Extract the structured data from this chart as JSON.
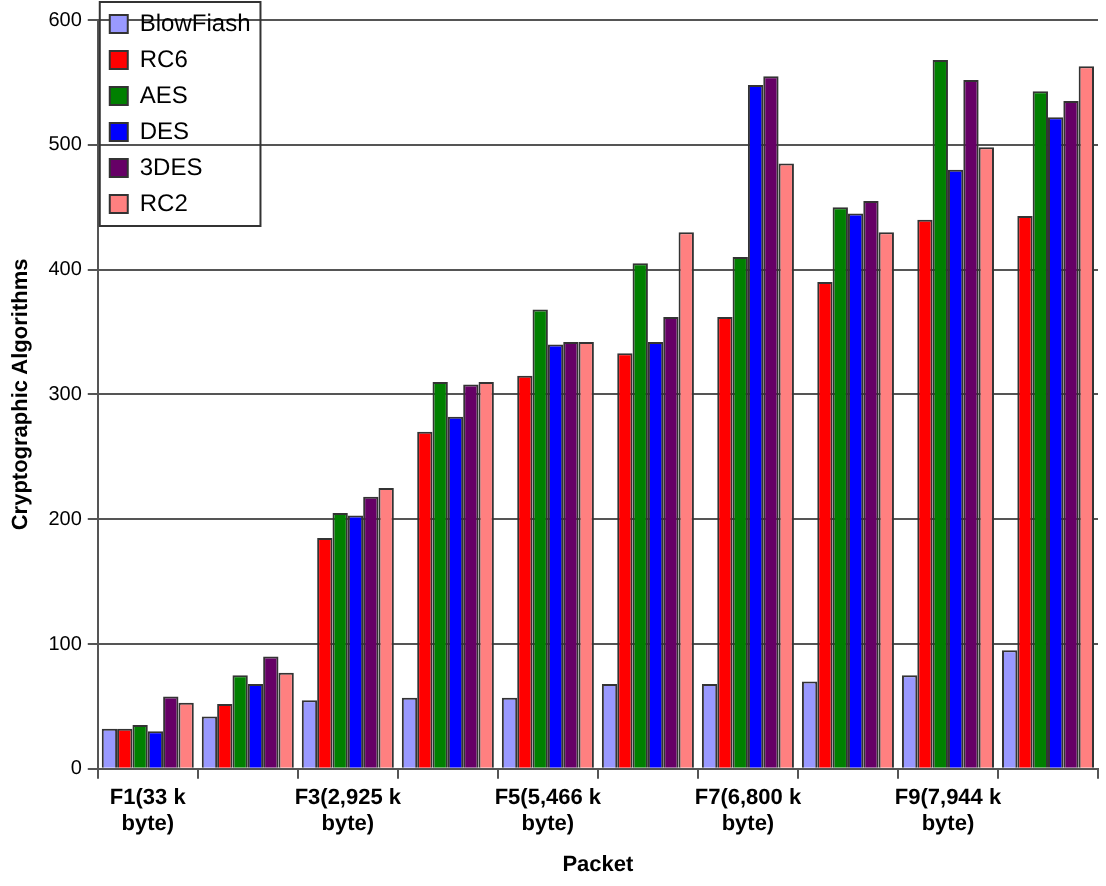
{
  "chart_data": {
    "type": "bar",
    "xlabel": "Packet",
    "ylabel": "Cryptographic Algorithms",
    "categories": [
      "F1(33 k byte)",
      null,
      "F3(2,925 k byte)",
      null,
      "F5(5,466 k byte)",
      null,
      "F7(6,800 k byte)",
      null,
      "F9(7,944 k byte)",
      null
    ],
    "series": [
      {
        "name": "BlowFiash",
        "color": "#9999ff",
        "values": [
          32,
          42,
          55,
          57,
          57,
          68,
          68,
          70,
          75,
          95
        ]
      },
      {
        "name": "RC6",
        "color": "#ff0000",
        "values": [
          32,
          52,
          185,
          270,
          315,
          333,
          362,
          390,
          440,
          443
        ]
      },
      {
        "name": "AES",
        "color": "#008000",
        "values": [
          35,
          75,
          205,
          310,
          368,
          405,
          410,
          450,
          568,
          543
        ]
      },
      {
        "name": "DES",
        "color": "#0000ff",
        "values": [
          30,
          68,
          203,
          282,
          340,
          342,
          548,
          445,
          480,
          522
        ]
      },
      {
        "name": "3DES",
        "color": "#660066",
        "values": [
          58,
          90,
          218,
          308,
          342,
          362,
          555,
          455,
          552,
          535
        ]
      },
      {
        "name": "RC2",
        "color": "#ff8080",
        "values": [
          53,
          77,
          225,
          310,
          342,
          430,
          485,
          430,
          498,
          563
        ]
      }
    ],
    "ylim": [
      0,
      600
    ],
    "yticks": [
      0,
      100,
      200,
      300,
      400,
      500,
      600
    ],
    "grid": "y",
    "legend": "top left"
  }
}
